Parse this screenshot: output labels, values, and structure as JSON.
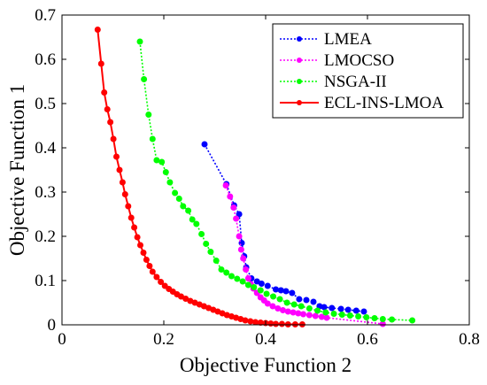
{
  "chart_data": {
    "type": "line",
    "title": "",
    "xlabel": "Objective Function 2",
    "ylabel": "Objective Function 1",
    "xlim": [
      0,
      0.8
    ],
    "ylim": [
      0,
      0.7
    ],
    "xticks": [
      "0",
      "0.2",
      "0.4",
      "0.6",
      "0.8"
    ],
    "yticks": [
      "0",
      "0.1",
      "0.2",
      "0.3",
      "0.4",
      "0.5",
      "0.6",
      "0.7"
    ],
    "grid": false,
    "legend_position": "top-right",
    "series": [
      {
        "name": "LMEA",
        "color": "#0000ff",
        "style": "dotted",
        "marker": "circle",
        "points": [
          [
            0.28,
            0.408
          ],
          [
            0.323,
            0.318
          ],
          [
            0.338,
            0.27
          ],
          [
            0.348,
            0.25
          ],
          [
            0.353,
            0.185
          ],
          [
            0.358,
            0.155
          ],
          [
            0.362,
            0.13
          ],
          [
            0.372,
            0.105
          ],
          [
            0.383,
            0.098
          ],
          [
            0.392,
            0.093
          ],
          [
            0.404,
            0.088
          ],
          [
            0.42,
            0.08
          ],
          [
            0.43,
            0.078
          ],
          [
            0.44,
            0.076
          ],
          [
            0.452,
            0.072
          ],
          [
            0.466,
            0.058
          ],
          [
            0.48,
            0.056
          ],
          [
            0.494,
            0.052
          ],
          [
            0.506,
            0.042
          ],
          [
            0.515,
            0.04
          ],
          [
            0.53,
            0.038
          ],
          [
            0.548,
            0.036
          ],
          [
            0.562,
            0.034
          ],
          [
            0.578,
            0.032
          ],
          [
            0.593,
            0.03
          ]
        ]
      },
      {
        "name": "LMOCSO",
        "color": "#ff00ff",
        "style": "dotted",
        "marker": "circle",
        "points": [
          [
            0.322,
            0.315
          ],
          [
            0.33,
            0.29
          ],
          [
            0.337,
            0.265
          ],
          [
            0.342,
            0.24
          ],
          [
            0.348,
            0.2
          ],
          [
            0.352,
            0.17
          ],
          [
            0.356,
            0.15
          ],
          [
            0.361,
            0.125
          ],
          [
            0.366,
            0.105
          ],
          [
            0.371,
            0.092
          ],
          [
            0.376,
            0.082
          ],
          [
            0.383,
            0.072
          ],
          [
            0.39,
            0.062
          ],
          [
            0.397,
            0.055
          ],
          [
            0.404,
            0.048
          ],
          [
            0.414,
            0.042
          ],
          [
            0.424,
            0.037
          ],
          [
            0.434,
            0.033
          ],
          [
            0.444,
            0.03
          ],
          [
            0.454,
            0.028
          ],
          [
            0.464,
            0.026
          ],
          [
            0.474,
            0.024
          ],
          [
            0.486,
            0.022
          ],
          [
            0.498,
            0.02
          ],
          [
            0.51,
            0.018
          ],
          [
            0.52,
            0.016
          ],
          [
            0.63,
            0.002
          ]
        ]
      },
      {
        "name": "NSGA-II",
        "color": "#00ff00",
        "style": "dotted",
        "marker": "circle",
        "points": [
          [
            0.153,
            0.64
          ],
          [
            0.161,
            0.555
          ],
          [
            0.17,
            0.475
          ],
          [
            0.178,
            0.42
          ],
          [
            0.186,
            0.372
          ],
          [
            0.196,
            0.368
          ],
          [
            0.204,
            0.345
          ],
          [
            0.212,
            0.322
          ],
          [
            0.222,
            0.298
          ],
          [
            0.23,
            0.285
          ],
          [
            0.238,
            0.268
          ],
          [
            0.248,
            0.258
          ],
          [
            0.256,
            0.238
          ],
          [
            0.264,
            0.228
          ],
          [
            0.274,
            0.205
          ],
          [
            0.283,
            0.183
          ],
          [
            0.292,
            0.165
          ],
          [
            0.303,
            0.145
          ],
          [
            0.313,
            0.125
          ],
          [
            0.323,
            0.118
          ],
          [
            0.333,
            0.11
          ],
          [
            0.344,
            0.104
          ],
          [
            0.355,
            0.098
          ],
          [
            0.366,
            0.09
          ],
          [
            0.377,
            0.085
          ],
          [
            0.39,
            0.078
          ],
          [
            0.402,
            0.07
          ],
          [
            0.415,
            0.064
          ],
          [
            0.428,
            0.058
          ],
          [
            0.442,
            0.05
          ],
          [
            0.456,
            0.046
          ],
          [
            0.47,
            0.042
          ],
          [
            0.486,
            0.037
          ],
          [
            0.502,
            0.032
          ],
          [
            0.518,
            0.028
          ],
          [
            0.534,
            0.025
          ],
          [
            0.55,
            0.023
          ],
          [
            0.566,
            0.021
          ],
          [
            0.582,
            0.019
          ],
          [
            0.598,
            0.017
          ],
          [
            0.614,
            0.015
          ],
          [
            0.63,
            0.013
          ],
          [
            0.648,
            0.012
          ],
          [
            0.688,
            0.01
          ]
        ]
      },
      {
        "name": "ECL-INS-LMOA",
        "color": "#ff0000",
        "style": "solid",
        "marker": "circle",
        "points": [
          [
            0.07,
            0.667
          ],
          [
            0.077,
            0.59
          ],
          [
            0.083,
            0.525
          ],
          [
            0.089,
            0.487
          ],
          [
            0.095,
            0.458
          ],
          [
            0.101,
            0.42
          ],
          [
            0.107,
            0.38
          ],
          [
            0.113,
            0.35
          ],
          [
            0.119,
            0.322
          ],
          [
            0.124,
            0.295
          ],
          [
            0.13,
            0.268
          ],
          [
            0.136,
            0.242
          ],
          [
            0.142,
            0.22
          ],
          [
            0.148,
            0.198
          ],
          [
            0.154,
            0.18
          ],
          [
            0.16,
            0.163
          ],
          [
            0.166,
            0.147
          ],
          [
            0.172,
            0.133
          ],
          [
            0.178,
            0.12
          ],
          [
            0.186,
            0.108
          ],
          [
            0.194,
            0.097
          ],
          [
            0.202,
            0.088
          ],
          [
            0.21,
            0.081
          ],
          [
            0.218,
            0.075
          ],
          [
            0.226,
            0.069
          ],
          [
            0.234,
            0.064
          ],
          [
            0.243,
            0.059
          ],
          [
            0.252,
            0.054
          ],
          [
            0.261,
            0.05
          ],
          [
            0.27,
            0.046
          ],
          [
            0.279,
            0.042
          ],
          [
            0.288,
            0.038
          ],
          [
            0.297,
            0.034
          ],
          [
            0.306,
            0.03
          ],
          [
            0.315,
            0.026
          ],
          [
            0.324,
            0.022
          ],
          [
            0.333,
            0.019
          ],
          [
            0.342,
            0.016
          ],
          [
            0.351,
            0.013
          ],
          [
            0.36,
            0.01
          ],
          [
            0.37,
            0.008
          ],
          [
            0.38,
            0.006
          ],
          [
            0.39,
            0.005
          ],
          [
            0.4,
            0.004
          ],
          [
            0.41,
            0.003
          ],
          [
            0.42,
            0.002
          ],
          [
            0.432,
            0.002
          ],
          [
            0.444,
            0.001
          ],
          [
            0.458,
            0.001
          ],
          [
            0.472,
            0.001
          ]
        ]
      }
    ]
  }
}
